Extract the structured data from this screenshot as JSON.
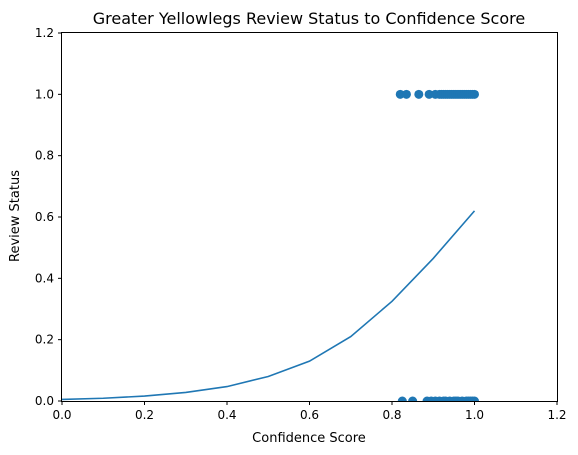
{
  "chart_data": {
    "type": "scatter",
    "title": "Greater Yellowlegs Review Status to Confidence Score",
    "xlabel": "Confidence Score",
    "ylabel": "Review Status",
    "xlim": [
      0.0,
      1.2
    ],
    "ylim": [
      0.0,
      1.2
    ],
    "xticks": [
      "0.0",
      "0.2",
      "0.4",
      "0.6",
      "0.8",
      "1.0",
      "1.2"
    ],
    "yticks": [
      "0.0",
      "0.2",
      "0.4",
      "0.6",
      "0.8",
      "1.0",
      "1.2"
    ],
    "grid": false,
    "color": "#1f77b4",
    "series": [
      {
        "kind": "scatter",
        "points": [
          [
            0.82,
            1.0
          ],
          [
            0.835,
            1.0
          ],
          [
            0.865,
            1.0
          ],
          [
            0.89,
            1.0
          ],
          [
            0.905,
            1.0
          ],
          [
            0.915,
            1.0
          ],
          [
            0.92,
            1.0
          ],
          [
            0.925,
            1.0
          ],
          [
            0.93,
            1.0
          ],
          [
            0.935,
            1.0
          ],
          [
            0.94,
            1.0
          ],
          [
            0.945,
            1.0
          ],
          [
            0.95,
            1.0
          ],
          [
            0.955,
            1.0
          ],
          [
            0.96,
            1.0
          ],
          [
            0.965,
            1.0
          ],
          [
            0.97,
            1.0
          ],
          [
            0.975,
            1.0
          ],
          [
            0.98,
            1.0
          ],
          [
            0.985,
            1.0
          ],
          [
            0.99,
            1.0
          ],
          [
            0.995,
            1.0
          ],
          [
            1.0,
            1.0
          ],
          [
            0.825,
            0.0
          ],
          [
            0.85,
            0.0
          ],
          [
            0.885,
            0.0
          ],
          [
            0.895,
            0.0
          ],
          [
            0.905,
            0.0
          ],
          [
            0.915,
            0.0
          ],
          [
            0.925,
            0.0
          ],
          [
            0.93,
            0.0
          ],
          [
            0.94,
            0.0
          ],
          [
            0.95,
            0.0
          ],
          [
            0.955,
            0.0
          ],
          [
            0.96,
            0.0
          ],
          [
            0.97,
            0.0
          ],
          [
            0.98,
            0.0
          ],
          [
            0.985,
            0.0
          ],
          [
            0.99,
            0.0
          ],
          [
            0.995,
            0.0
          ],
          [
            1.0,
            0.0
          ]
        ]
      },
      {
        "kind": "line",
        "points": [
          [
            0.0,
            0.005
          ],
          [
            0.1,
            0.009
          ],
          [
            0.2,
            0.016
          ],
          [
            0.3,
            0.028
          ],
          [
            0.4,
            0.047
          ],
          [
            0.5,
            0.08
          ],
          [
            0.6,
            0.13
          ],
          [
            0.7,
            0.21
          ],
          [
            0.8,
            0.325
          ],
          [
            0.9,
            0.465
          ],
          [
            1.0,
            0.62
          ]
        ]
      }
    ]
  }
}
